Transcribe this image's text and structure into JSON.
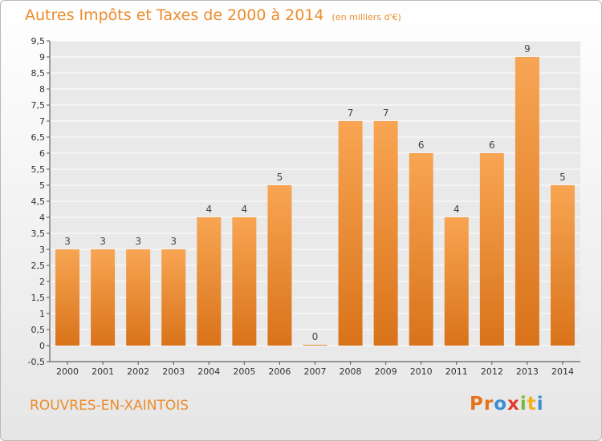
{
  "title": "Autres Impôts et Taxes de 2000 à 2014",
  "subtitle": "(en milliers d'€)",
  "town": "ROUVRES-EN-XAINTOIS",
  "logo": {
    "letters": [
      "P",
      "r",
      "o",
      "x",
      "i",
      "t",
      "i"
    ],
    "colors": [
      "#e8721c",
      "#e8721c",
      "#3a8fd1",
      "#e23a2e",
      "#7cb83a",
      "#f2b21c",
      "#3a8fd1"
    ]
  },
  "colors": {
    "bar_top": "#f8a553",
    "bar_bottom": "#d9731a",
    "accent": "#ec8c2c"
  },
  "chart_data": {
    "type": "bar",
    "title": "Autres Impôts et Taxes de 2000 à 2014",
    "categories": [
      "2000",
      "2001",
      "2002",
      "2003",
      "2004",
      "2005",
      "2006",
      "2007",
      "2008",
      "2009",
      "2010",
      "2011",
      "2012",
      "2013",
      "2014"
    ],
    "values": [
      3,
      3,
      3,
      3,
      4,
      4,
      5,
      0,
      7,
      7,
      6,
      4,
      6,
      9,
      5
    ],
    "ylim": [
      -0.5,
      9.5
    ],
    "yticks": [
      "-0,5",
      "0",
      "0,5",
      "1",
      "1,5",
      "2",
      "2,5",
      "3",
      "3,5",
      "4",
      "4,5",
      "5",
      "5,5",
      "6",
      "6,5",
      "7",
      "7,5",
      "8",
      "8,5",
      "9",
      "9,5"
    ],
    "grid": true
  }
}
